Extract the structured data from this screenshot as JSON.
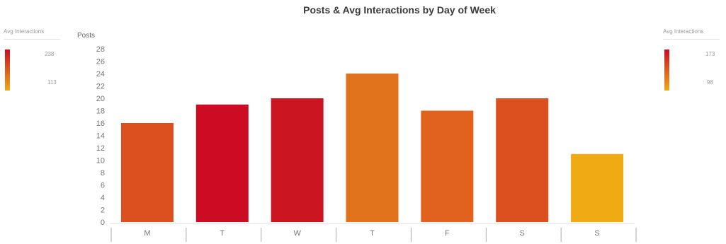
{
  "chart_data": {
    "type": "bar",
    "title": "Posts & Avg Interactions by Day of Week",
    "ylabel": "Posts",
    "xlabel": "",
    "ylim": [
      0,
      28
    ],
    "yticks": [
      0,
      2,
      4,
      6,
      8,
      10,
      12,
      14,
      16,
      18,
      20,
      22,
      24,
      26,
      28
    ],
    "categories": [
      "M",
      "T",
      "W",
      "T",
      "F",
      "S",
      "S"
    ],
    "values": [
      16,
      19,
      20,
      24,
      18,
      20,
      11
    ],
    "bar_colors": [
      "#dc5020",
      "#cc0c22",
      "#cb1621",
      "#e0731b",
      "#e0621e",
      "#dc5020",
      "#efaa14"
    ],
    "grid": false,
    "legends": [
      {
        "title": "Avg Interactions",
        "max": "238",
        "min": "113",
        "color_high": "#cc0c22",
        "color_low": "#efaa14",
        "placement": "left"
      },
      {
        "title": "Avg Interactions",
        "max": "173",
        "min": "98",
        "color_high": "#cc0c22",
        "color_low": "#efaa14",
        "placement": "right"
      }
    ]
  }
}
